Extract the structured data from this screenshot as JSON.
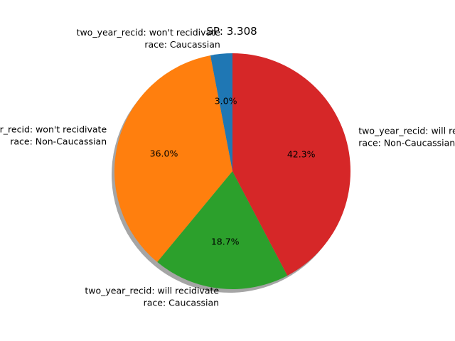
{
  "chart_data": {
    "type": "pie",
    "title": "SP: 3.308",
    "shadow": true,
    "start_angle_deg": 90,
    "direction": "counterclockwise",
    "slices": [
      {
        "label_line1": "two_year_recid: won't recidivate",
        "label_line2": "race: Caucassian",
        "percent_label": "3.0%",
        "value": 3.0,
        "color": "#1f77b4"
      },
      {
        "label_line1": "two_year_recid: won't recidivate",
        "label_line2": "race: Non-Caucassian",
        "percent_label": "36.0%",
        "value": 36.0,
        "color": "#ff7f0e"
      },
      {
        "label_line1": "two_year_recid: will recidivate",
        "label_line2": "race: Caucassian",
        "percent_label": "18.7%",
        "value": 18.7,
        "color": "#2ca02c"
      },
      {
        "label_line1": "two_year_recid: will recidivate",
        "label_line2": "race: Non-Caucassian",
        "percent_label": "42.3%",
        "value": 42.3,
        "color": "#d62728"
      }
    ]
  }
}
